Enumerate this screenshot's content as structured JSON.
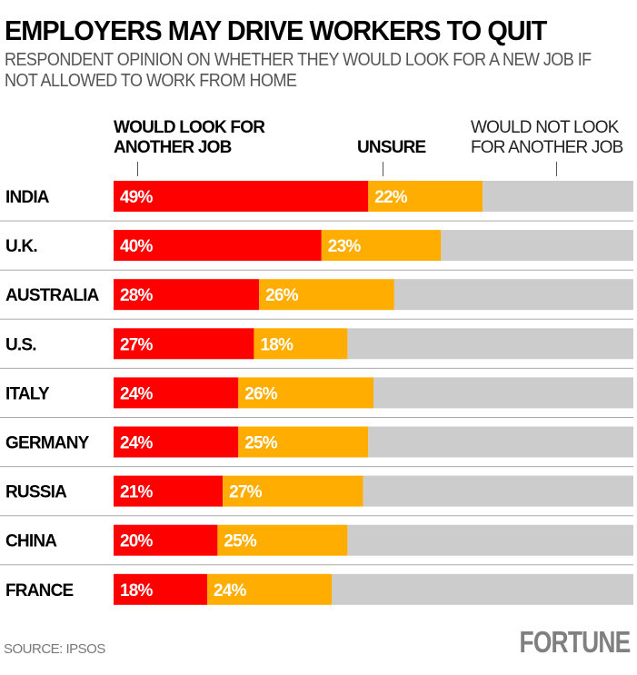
{
  "title": "EMPLOYERS MAY DRIVE WORKERS TO QUIT",
  "subtitle": "RESPONDENT OPINION ON WHETHER THEY WOULD LOOK FOR A NEW JOB IF NOT ALLOWED TO WORK FROM HOME",
  "source": "SOURCE: IPSOS",
  "logo": "FORTUNE",
  "chart_data": {
    "type": "bar",
    "orientation": "horizontal",
    "stacked": true,
    "xlim": [
      0,
      100
    ],
    "categories": [
      "INDIA",
      "U.K.",
      "AUSTRALIA",
      "U.S.",
      "ITALY",
      "GERMANY",
      "RUSSIA",
      "CHINA",
      "FRANCE"
    ],
    "series": [
      {
        "name": "WOULD LOOK FOR ANOTHER JOB",
        "color": "#ff0000",
        "values": [
          49,
          40,
          28,
          27,
          24,
          24,
          21,
          20,
          18
        ]
      },
      {
        "name": "UNSURE",
        "color": "#ffad00",
        "values": [
          22,
          23,
          26,
          18,
          26,
          25,
          27,
          25,
          24
        ]
      },
      {
        "name": "WOULD NOT LOOK FOR ANOTHER JOB",
        "color": "#cccccc",
        "values": [
          29,
          37,
          46,
          55,
          50,
          51,
          52,
          55,
          58
        ]
      }
    ],
    "legend_placement": "top",
    "label_suffix": "%"
  }
}
